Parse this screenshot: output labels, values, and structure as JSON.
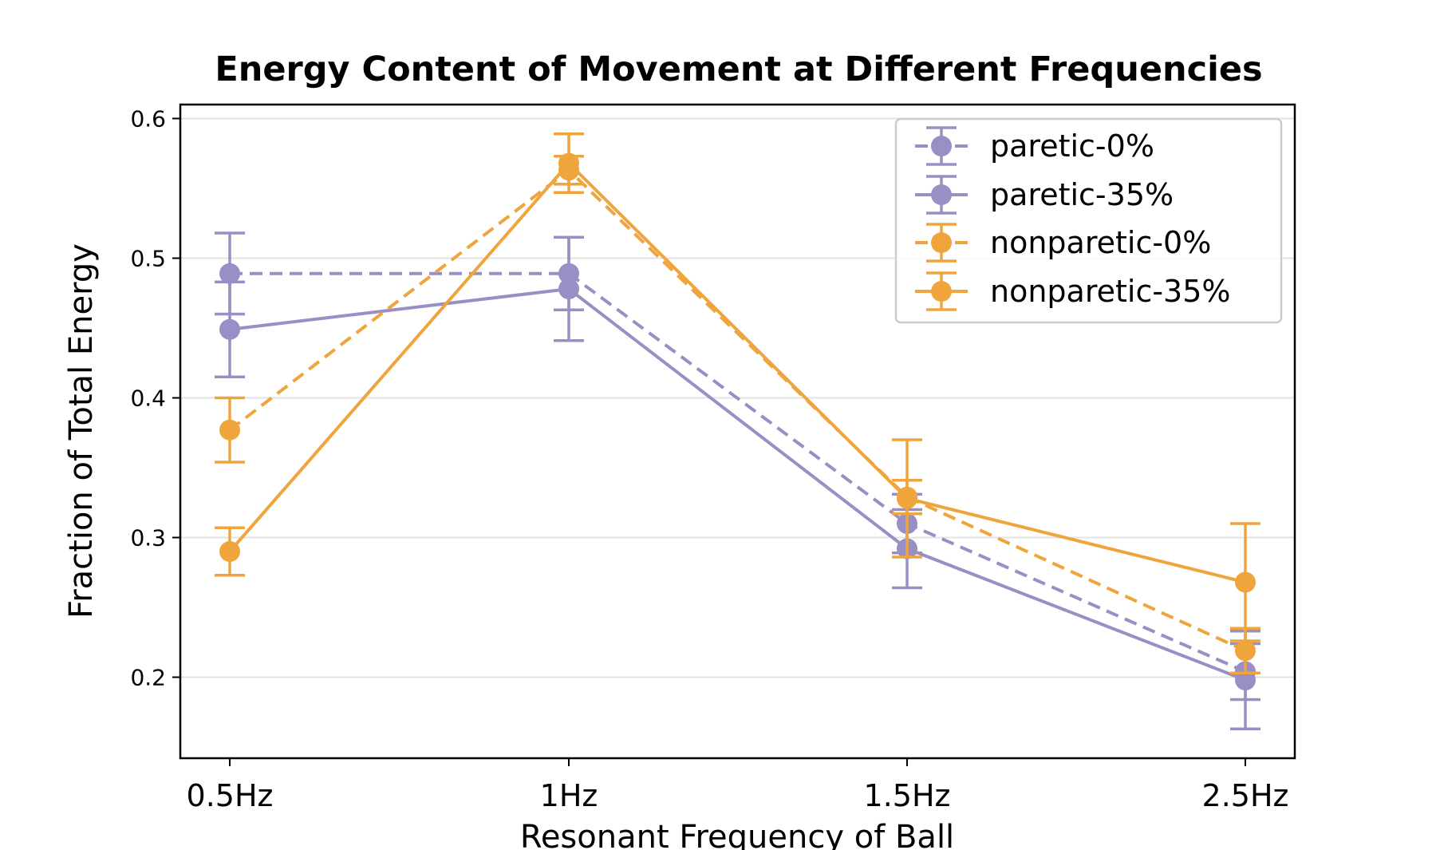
{
  "chart_data": {
    "type": "line",
    "title": "Energy Content of Movement at Different Frequencies",
    "xlabel": "Resonant Frequency of Ball",
    "ylabel": "Fraction of Total Energy",
    "categories": [
      "0.5Hz",
      "1Hz",
      "1.5Hz",
      "2.5Hz"
    ],
    "ylim": [
      0.142,
      0.61
    ],
    "yticks": [
      0.2,
      0.3,
      0.4,
      0.5,
      0.6
    ],
    "ytick_labels": [
      "0.2",
      "0.3",
      "0.4",
      "0.5",
      "0.6"
    ],
    "grid": "horizontal",
    "legend_position": "top-right",
    "series": [
      {
        "name": "paretic-0%",
        "color": "#9a8fc4",
        "linestyle": "dashed",
        "values": [
          0.489,
          0.489,
          0.31,
          0.204
        ],
        "errors": [
          0.029,
          0.026,
          0.021,
          0.02
        ]
      },
      {
        "name": "paretic-35%",
        "color": "#9a8fc4",
        "linestyle": "solid",
        "values": [
          0.449,
          0.478,
          0.292,
          0.198
        ],
        "errors": [
          0.034,
          0.037,
          0.028,
          0.035
        ]
      },
      {
        "name": "nonparetic-0%",
        "color": "#f0a43c",
        "linestyle": "dashed",
        "values": [
          0.377,
          0.563,
          0.329,
          0.219
        ],
        "errors": [
          0.023,
          0.01,
          0.012,
          0.016
        ]
      },
      {
        "name": "nonparetic-35%",
        "color": "#f0a43c",
        "linestyle": "solid",
        "values": [
          0.29,
          0.568,
          0.328,
          0.268
        ],
        "errors": [
          0.017,
          0.021,
          0.042,
          0.042
        ]
      }
    ]
  }
}
